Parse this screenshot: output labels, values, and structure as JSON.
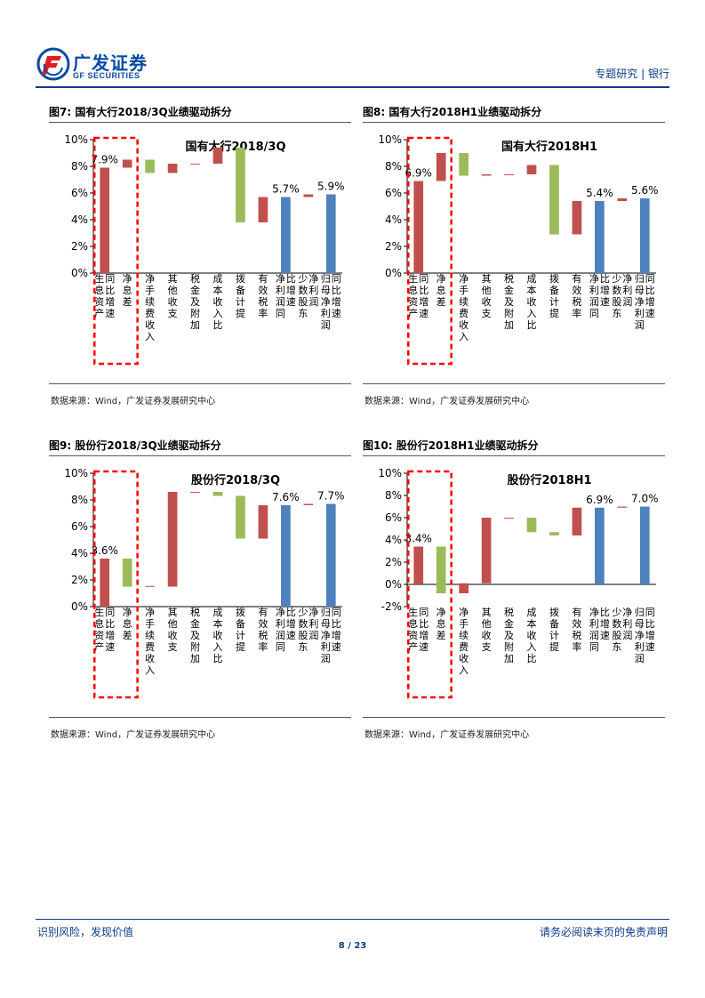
{
  "header": {
    "logo_cn": "广发证券",
    "logo_en": "GF SECURITIES",
    "section": "专题研究",
    "industry": "银行"
  },
  "footer": {
    "left": "识别风险，发现价值",
    "right": "请务必阅读末页的免责声明",
    "page": "8 / 23"
  },
  "colors": {
    "red": "#c0504d",
    "green": "#9bbb59",
    "blue": "#4f81bd",
    "highlight": "#ff0000",
    "brand": "#0a4aa3"
  },
  "chart_data": [
    {
      "figure_label": "图7:",
      "caption": "国有大行2018/3Q业绩驱动拆分",
      "type": "bar",
      "title": "国有大行2018/3Q",
      "source": "数据来源：Wind，广发证券发展研究中心",
      "ylim": [
        0,
        10
      ],
      "ytick_labels": [
        "0%",
        "2%",
        "4%",
        "6%",
        "8%",
        "10%"
      ],
      "yticks": [
        0,
        2,
        4,
        6,
        8,
        10
      ],
      "categories": [
        "生息资产同比增速",
        "净息差",
        "净手续费收入",
        "其他收支",
        "税金及附加",
        "成本收入比",
        "拨备计提",
        "有效税率",
        "净利润同比增速",
        "少数股东净利润",
        "归母净利润同比增速"
      ],
      "bars": [
        {
          "base": 0,
          "top": 7.9,
          "color": "red",
          "label": "7.9%"
        },
        {
          "base": 7.9,
          "top": 8.5,
          "color": "red",
          "label": ""
        },
        {
          "base": 7.5,
          "top": 8.5,
          "color": "green",
          "label": ""
        },
        {
          "base": 7.5,
          "top": 8.2,
          "color": "red",
          "label": ""
        },
        {
          "base": 8.15,
          "top": 8.2,
          "color": "red",
          "label": ""
        },
        {
          "base": 8.2,
          "top": 9.4,
          "color": "red",
          "label": ""
        },
        {
          "base": 3.8,
          "top": 9.4,
          "color": "green",
          "label": ""
        },
        {
          "base": 3.8,
          "top": 5.7,
          "color": "red",
          "label": ""
        },
        {
          "base": 0,
          "top": 5.7,
          "color": "blue",
          "label": "5.7%"
        },
        {
          "base": 5.7,
          "top": 5.9,
          "color": "red",
          "label": ""
        },
        {
          "base": 0,
          "top": 5.9,
          "color": "blue",
          "label": "5.9%"
        }
      ]
    },
    {
      "figure_label": "图8:",
      "caption": "国有大行2018H1业绩驱动拆分",
      "type": "bar",
      "title": "国有大行2018H1",
      "source": "数据来源：Wind，广发证券发展研究中心",
      "ylim": [
        0,
        10
      ],
      "ytick_labels": [
        "0%",
        "2%",
        "4%",
        "6%",
        "8%",
        "10%"
      ],
      "yticks": [
        0,
        2,
        4,
        6,
        8,
        10
      ],
      "categories": [
        "生息资产同比增速",
        "净息差",
        "净手续费收入",
        "其他收支",
        "税金及附加",
        "成本收入比",
        "拨备计提",
        "有效税率",
        "净利润同比增速",
        "少数股东净利润",
        "归母净利润同比增速"
      ],
      "bars": [
        {
          "base": 0,
          "top": 6.9,
          "color": "red",
          "label": "6.9%"
        },
        {
          "base": 6.9,
          "top": 9.0,
          "color": "red",
          "label": ""
        },
        {
          "base": 7.3,
          "top": 9.0,
          "color": "green",
          "label": ""
        },
        {
          "base": 7.3,
          "top": 7.4,
          "color": "red",
          "label": ""
        },
        {
          "base": 7.35,
          "top": 7.4,
          "color": "red",
          "label": ""
        },
        {
          "base": 7.4,
          "top": 8.1,
          "color": "red",
          "label": ""
        },
        {
          "base": 2.9,
          "top": 8.1,
          "color": "green",
          "label": ""
        },
        {
          "base": 2.9,
          "top": 5.4,
          "color": "red",
          "label": ""
        },
        {
          "base": 0,
          "top": 5.4,
          "color": "blue",
          "label": "5.4%"
        },
        {
          "base": 5.4,
          "top": 5.6,
          "color": "red",
          "label": ""
        },
        {
          "base": 0,
          "top": 5.6,
          "color": "blue",
          "label": "5.6%"
        }
      ]
    },
    {
      "figure_label": "图9:",
      "caption": "股份行2018/3Q业绩驱动拆分",
      "type": "bar",
      "title": "股份行2018/3Q",
      "source": "数据来源：Wind，广发证券发展研究中心",
      "ylim": [
        0,
        10
      ],
      "ytick_labels": [
        "0%",
        "2%",
        "4%",
        "6%",
        "8%",
        "10%"
      ],
      "yticks": [
        0,
        2,
        4,
        6,
        8,
        10
      ],
      "categories": [
        "生息资产同比增速",
        "净息差",
        "净手续费收入",
        "其他收支",
        "税金及附加",
        "成本收入比",
        "拨备计提",
        "有效税率",
        "净利润同比增速",
        "少数股东净利润",
        "归母净利润同比增速"
      ],
      "bars": [
        {
          "base": 0,
          "top": 3.6,
          "color": "red",
          "label": "3.6%"
        },
        {
          "base": 1.5,
          "top": 3.6,
          "color": "green",
          "label": ""
        },
        {
          "base": 1.5,
          "top": 1.55,
          "color": "red",
          "label": ""
        },
        {
          "base": 1.5,
          "top": 8.6,
          "color": "red",
          "label": ""
        },
        {
          "base": 8.55,
          "top": 8.6,
          "color": "red",
          "label": ""
        },
        {
          "base": 8.3,
          "top": 8.6,
          "color": "green",
          "label": ""
        },
        {
          "base": 5.1,
          "top": 8.3,
          "color": "green",
          "label": ""
        },
        {
          "base": 5.1,
          "top": 7.6,
          "color": "red",
          "label": ""
        },
        {
          "base": 0,
          "top": 7.6,
          "color": "blue",
          "label": "7.6%"
        },
        {
          "base": 7.6,
          "top": 7.7,
          "color": "red",
          "label": ""
        },
        {
          "base": 0,
          "top": 7.7,
          "color": "blue",
          "label": "7.7%"
        }
      ]
    },
    {
      "figure_label": "图10:",
      "caption": "股份行2018H1业绩驱动拆分",
      "type": "bar",
      "title": "股份行2018H1",
      "source": "数据来源：Wind，广发证券发展研究中心",
      "ylim": [
        -2,
        10
      ],
      "ytick_labels": [
        "-2%",
        "0%",
        "2%",
        "4%",
        "6%",
        "8%",
        "10%"
      ],
      "yticks": [
        -2,
        0,
        2,
        4,
        6,
        8,
        10
      ],
      "categories": [
        "生息资产同比增速",
        "净息差",
        "净手续费收入",
        "其他收支",
        "税金及附加",
        "成本收入比",
        "拨备计提",
        "有效税率",
        "净利润同比增速",
        "少数股东净利润",
        "归母净利润同比增速"
      ],
      "bars": [
        {
          "base": 0,
          "top": 3.4,
          "color": "red",
          "label": "3.4%"
        },
        {
          "base": -0.8,
          "top": 3.4,
          "color": "green",
          "label": ""
        },
        {
          "base": -0.8,
          "top": 0.1,
          "color": "red",
          "label": ""
        },
        {
          "base": 0.1,
          "top": 6.0,
          "color": "red",
          "label": ""
        },
        {
          "base": 5.95,
          "top": 6.0,
          "color": "red",
          "label": ""
        },
        {
          "base": 4.7,
          "top": 6.0,
          "color": "green",
          "label": ""
        },
        {
          "base": 4.4,
          "top": 4.7,
          "color": "green",
          "label": ""
        },
        {
          "base": 4.4,
          "top": 6.9,
          "color": "red",
          "label": ""
        },
        {
          "base": 0,
          "top": 6.9,
          "color": "blue",
          "label": "6.9%"
        },
        {
          "base": 6.9,
          "top": 7.0,
          "color": "red",
          "label": ""
        },
        {
          "base": 0,
          "top": 7.0,
          "color": "blue",
          "label": "7.0%"
        }
      ]
    }
  ]
}
